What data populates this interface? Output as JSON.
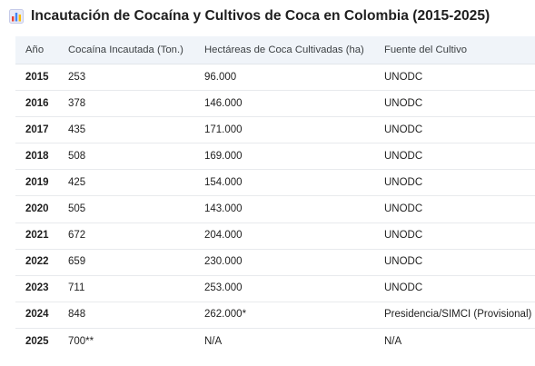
{
  "title": "Incautación de Cocaína y Cultivos de Coca en Colombia (2015-2025)",
  "title_icon": "bar-chart-icon",
  "columns": [
    "Año",
    "Cocaína Incautada (Ton.)",
    "Hectáreas de Coca Cultivadas (ha)",
    "Fuente del Cultivo"
  ],
  "rows": [
    {
      "year": "2015",
      "seized": "253",
      "hectares": "96.000",
      "source": "UNODC"
    },
    {
      "year": "2016",
      "seized": "378",
      "hectares": "146.000",
      "source": "UNODC"
    },
    {
      "year": "2017",
      "seized": "435",
      "hectares": "171.000",
      "source": "UNODC"
    },
    {
      "year": "2018",
      "seized": "508",
      "hectares": "169.000",
      "source": "UNODC"
    },
    {
      "year": "2019",
      "seized": "425",
      "hectares": "154.000",
      "source": "UNODC"
    },
    {
      "year": "2020",
      "seized": "505",
      "hectares": "143.000",
      "source": "UNODC"
    },
    {
      "year": "2021",
      "seized": "672",
      "hectares": "204.000",
      "source": "UNODC"
    },
    {
      "year": "2022",
      "seized": "659",
      "hectares": "230.000",
      "source": "UNODC"
    },
    {
      "year": "2023",
      "seized": "711",
      "hectares": "253.000",
      "source": "UNODC"
    },
    {
      "year": "2024",
      "seized": "848",
      "hectares": "262.000*",
      "source": "Presidencia/SIMCI (Provisional)"
    },
    {
      "year": "2025",
      "seized": "700**",
      "hectares": "N/A",
      "source": "N/A"
    }
  ],
  "colors": {
    "header_bg": "#f0f4f9",
    "text": "#1f1f1f",
    "icon_bar_blue": "#4285f4",
    "icon_bar_red": "#ea4335",
    "icon_bar_yellow": "#fbbc04"
  }
}
